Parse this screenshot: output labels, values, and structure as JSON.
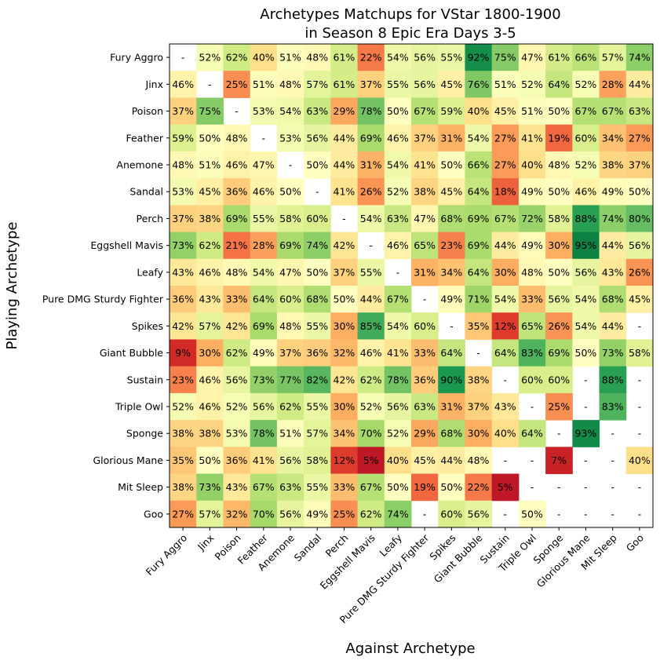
{
  "chart_data": {
    "type": "heatmap",
    "title_lines": [
      "Archetypes Matchups for VStar 1800-1900",
      "in Season 8 Epic Era Days 3-5"
    ],
    "xlabel": "Against Archetype",
    "ylabel": "Playing Archetype",
    "rows": [
      "Fury Aggro",
      "Jinx",
      "Poison",
      "Feather",
      "Anemone",
      "Sandal",
      "Perch",
      "Eggshell Mavis",
      "Leafy",
      "Pure DMG Sturdy Fighter",
      "Spikes",
      "Giant Bubble",
      "Sustain",
      "Triple Owl",
      "Sponge",
      "Glorious Mane",
      "Mit Sleep",
      "Goo"
    ],
    "cols": [
      "Fury Aggro",
      "Jinx",
      "Poison",
      "Feather",
      "Anemone",
      "Sandal",
      "Perch",
      "Eggshell Mavis",
      "Leafy",
      "Pure DMG Sturdy Fighter",
      "Spikes",
      "Giant Bubble",
      "Sustain",
      "Triple Owl",
      "Sponge",
      "Glorious Mane",
      "Mit Sleep",
      "Goo"
    ],
    "colormap": "RdYlGn",
    "value_range": [
      0,
      100
    ],
    "missing_label": "-",
    "values": [
      [
        null,
        52,
        62,
        40,
        51,
        48,
        61,
        22,
        54,
        56,
        55,
        92,
        75,
        47,
        61,
        66,
        57,
        74
      ],
      [
        46,
        null,
        25,
        51,
        48,
        57,
        61,
        37,
        55,
        56,
        45,
        76,
        51,
        52,
        64,
        52,
        28,
        44
      ],
      [
        37,
        75,
        null,
        53,
        54,
        63,
        29,
        78,
        50,
        67,
        59,
        40,
        45,
        51,
        50,
        67,
        67,
        63
      ],
      [
        59,
        50,
        48,
        null,
        53,
        56,
        44,
        69,
        46,
        37,
        31,
        54,
        27,
        41,
        19,
        60,
        34,
        27
      ],
      [
        48,
        51,
        46,
        47,
        null,
        50,
        44,
        31,
        54,
        41,
        50,
        66,
        27,
        40,
        48,
        52,
        38,
        37
      ],
      [
        53,
        45,
        36,
        46,
        50,
        null,
        41,
        26,
        52,
        38,
        45,
        64,
        18,
        49,
        50,
        46,
        49,
        50
      ],
      [
        37,
        38,
        69,
        55,
        58,
        60,
        null,
        54,
        63,
        47,
        68,
        69,
        67,
        72,
        58,
        88,
        74,
        80
      ],
      [
        73,
        62,
        21,
        28,
        69,
        74,
        42,
        null,
        46,
        65,
        23,
        69,
        44,
        49,
        30,
        95,
        44,
        56
      ],
      [
        43,
        46,
        48,
        54,
        47,
        50,
        37,
        55,
        null,
        31,
        34,
        64,
        30,
        48,
        50,
        56,
        43,
        26
      ],
      [
        36,
        43,
        33,
        64,
        60,
        68,
        50,
        44,
        67,
        null,
        49,
        71,
        54,
        33,
        56,
        54,
        68,
        45
      ],
      [
        42,
        57,
        42,
        69,
        48,
        55,
        30,
        85,
        54,
        60,
        null,
        35,
        12,
        65,
        26,
        54,
        44,
        null
      ],
      [
        9,
        30,
        62,
        49,
        37,
        36,
        32,
        46,
        41,
        33,
        64,
        null,
        64,
        83,
        69,
        50,
        73,
        58
      ],
      [
        23,
        46,
        56,
        73,
        77,
        82,
        42,
        62,
        78,
        36,
        90,
        38,
        null,
        60,
        60,
        null,
        88,
        null
      ],
      [
        52,
        46,
        52,
        56,
        62,
        55,
        30,
        52,
        56,
        63,
        31,
        37,
        43,
        null,
        25,
        null,
        83,
        null
      ],
      [
        38,
        38,
        53,
        78,
        51,
        57,
        34,
        70,
        52,
        29,
        68,
        30,
        40,
        64,
        null,
        93,
        null,
        null
      ],
      [
        35,
        50,
        36,
        41,
        56,
        58,
        12,
        5,
        40,
        45,
        44,
        48,
        null,
        null,
        7,
        null,
        null,
        40
      ],
      [
        38,
        73,
        43,
        67,
        63,
        55,
        33,
        67,
        50,
        19,
        50,
        22,
        5,
        null,
        null,
        null,
        null,
        null
      ],
      [
        27,
        57,
        32,
        70,
        56,
        49,
        25,
        62,
        74,
        null,
        60,
        56,
        null,
        50,
        null,
        null,
        null,
        null
      ]
    ]
  }
}
